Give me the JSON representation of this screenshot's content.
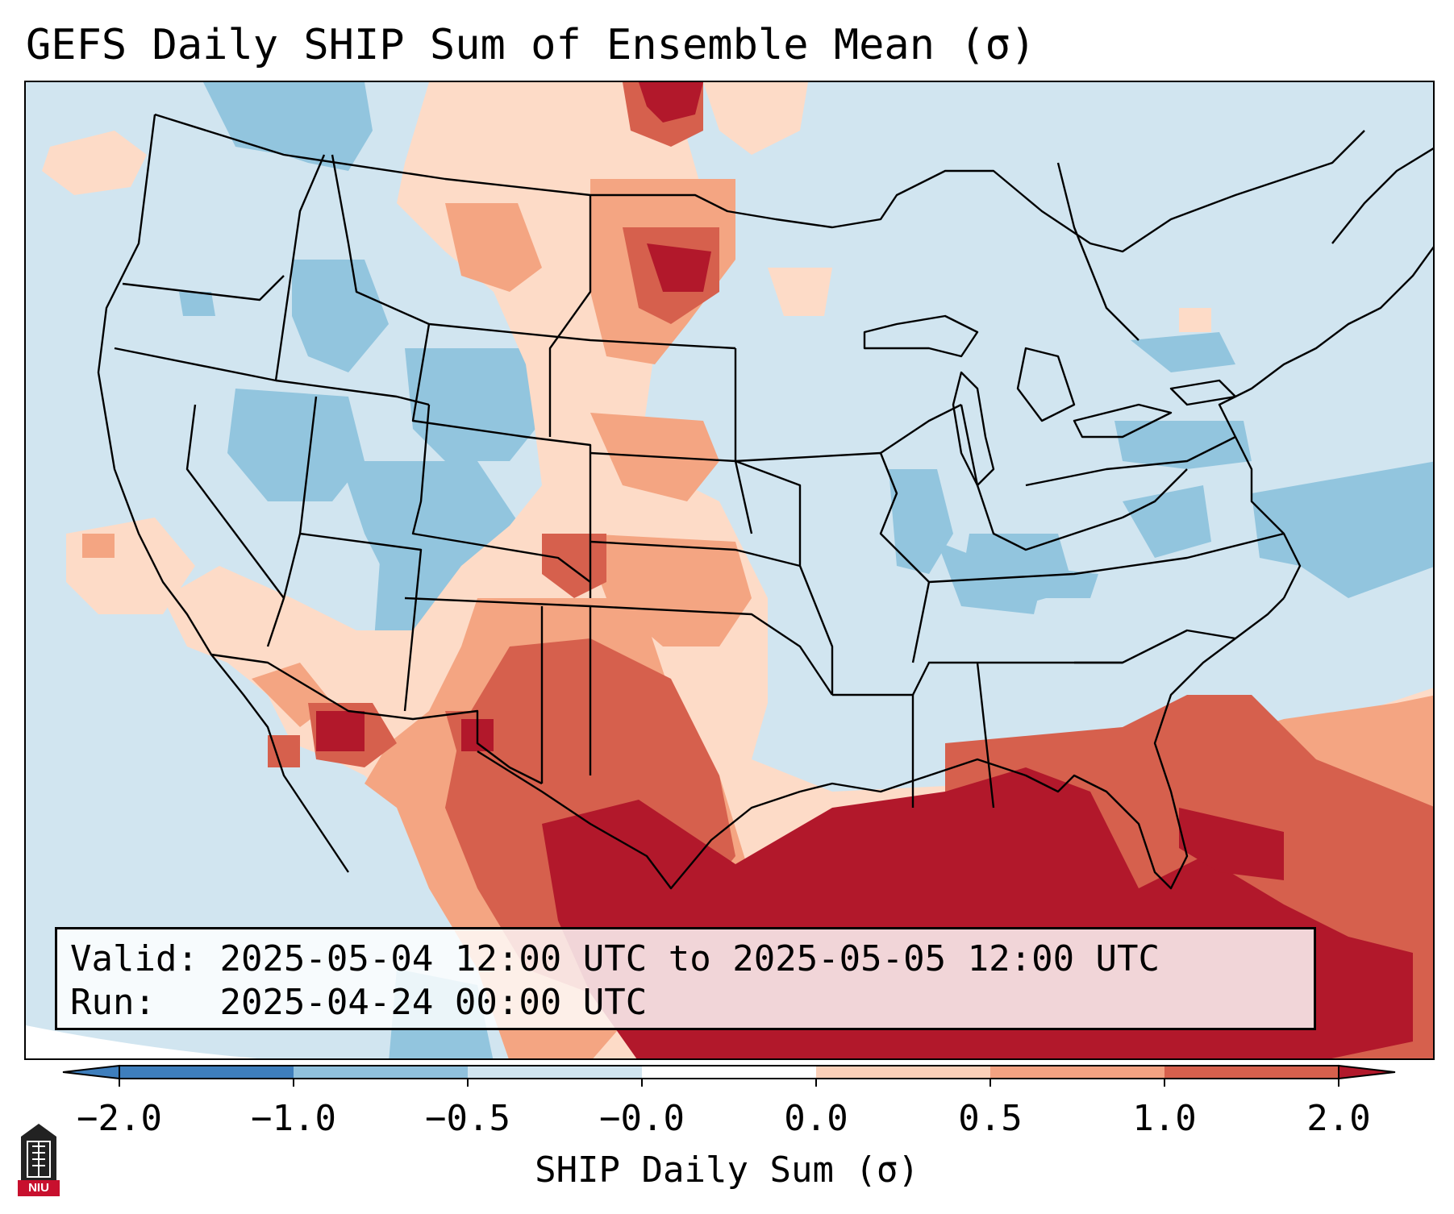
{
  "title": "GEFS Daily SHIP Sum of Ensemble Mean (σ)",
  "info": {
    "valid_label": "Valid:",
    "valid_value": "2025-05-04 12:00 UTC to 2025-05-05 12:00 UTC",
    "run_label": "Run:",
    "run_value": "2025-04-24 00:00 UTC"
  },
  "colorbar": {
    "label": "SHIP Daily Sum (σ)",
    "ticks": [
      "−2.0",
      "−1.0",
      "−0.5",
      "−0.0",
      "0.0",
      "0.5",
      "1.0",
      "2.0"
    ],
    "colors": [
      "#3e7ebc",
      "#90c1dd",
      "#d1e5f0",
      "#ffffff",
      "#fbd0b9",
      "#f3a282",
      "#d6604d",
      "#b2182b"
    ]
  },
  "logo": {
    "text": "NIU"
  },
  "palette": {
    "below_-1": "#2166ac",
    "neg_1_to_05": "#92c5de",
    "neg_05_to_0": "#d1e5f0",
    "pos_0_to_05": "#fddbc7",
    "pos_05_to_1": "#f4a582",
    "pos_1_to_2": "#d6604d",
    "above_2": "#b2182b"
  }
}
